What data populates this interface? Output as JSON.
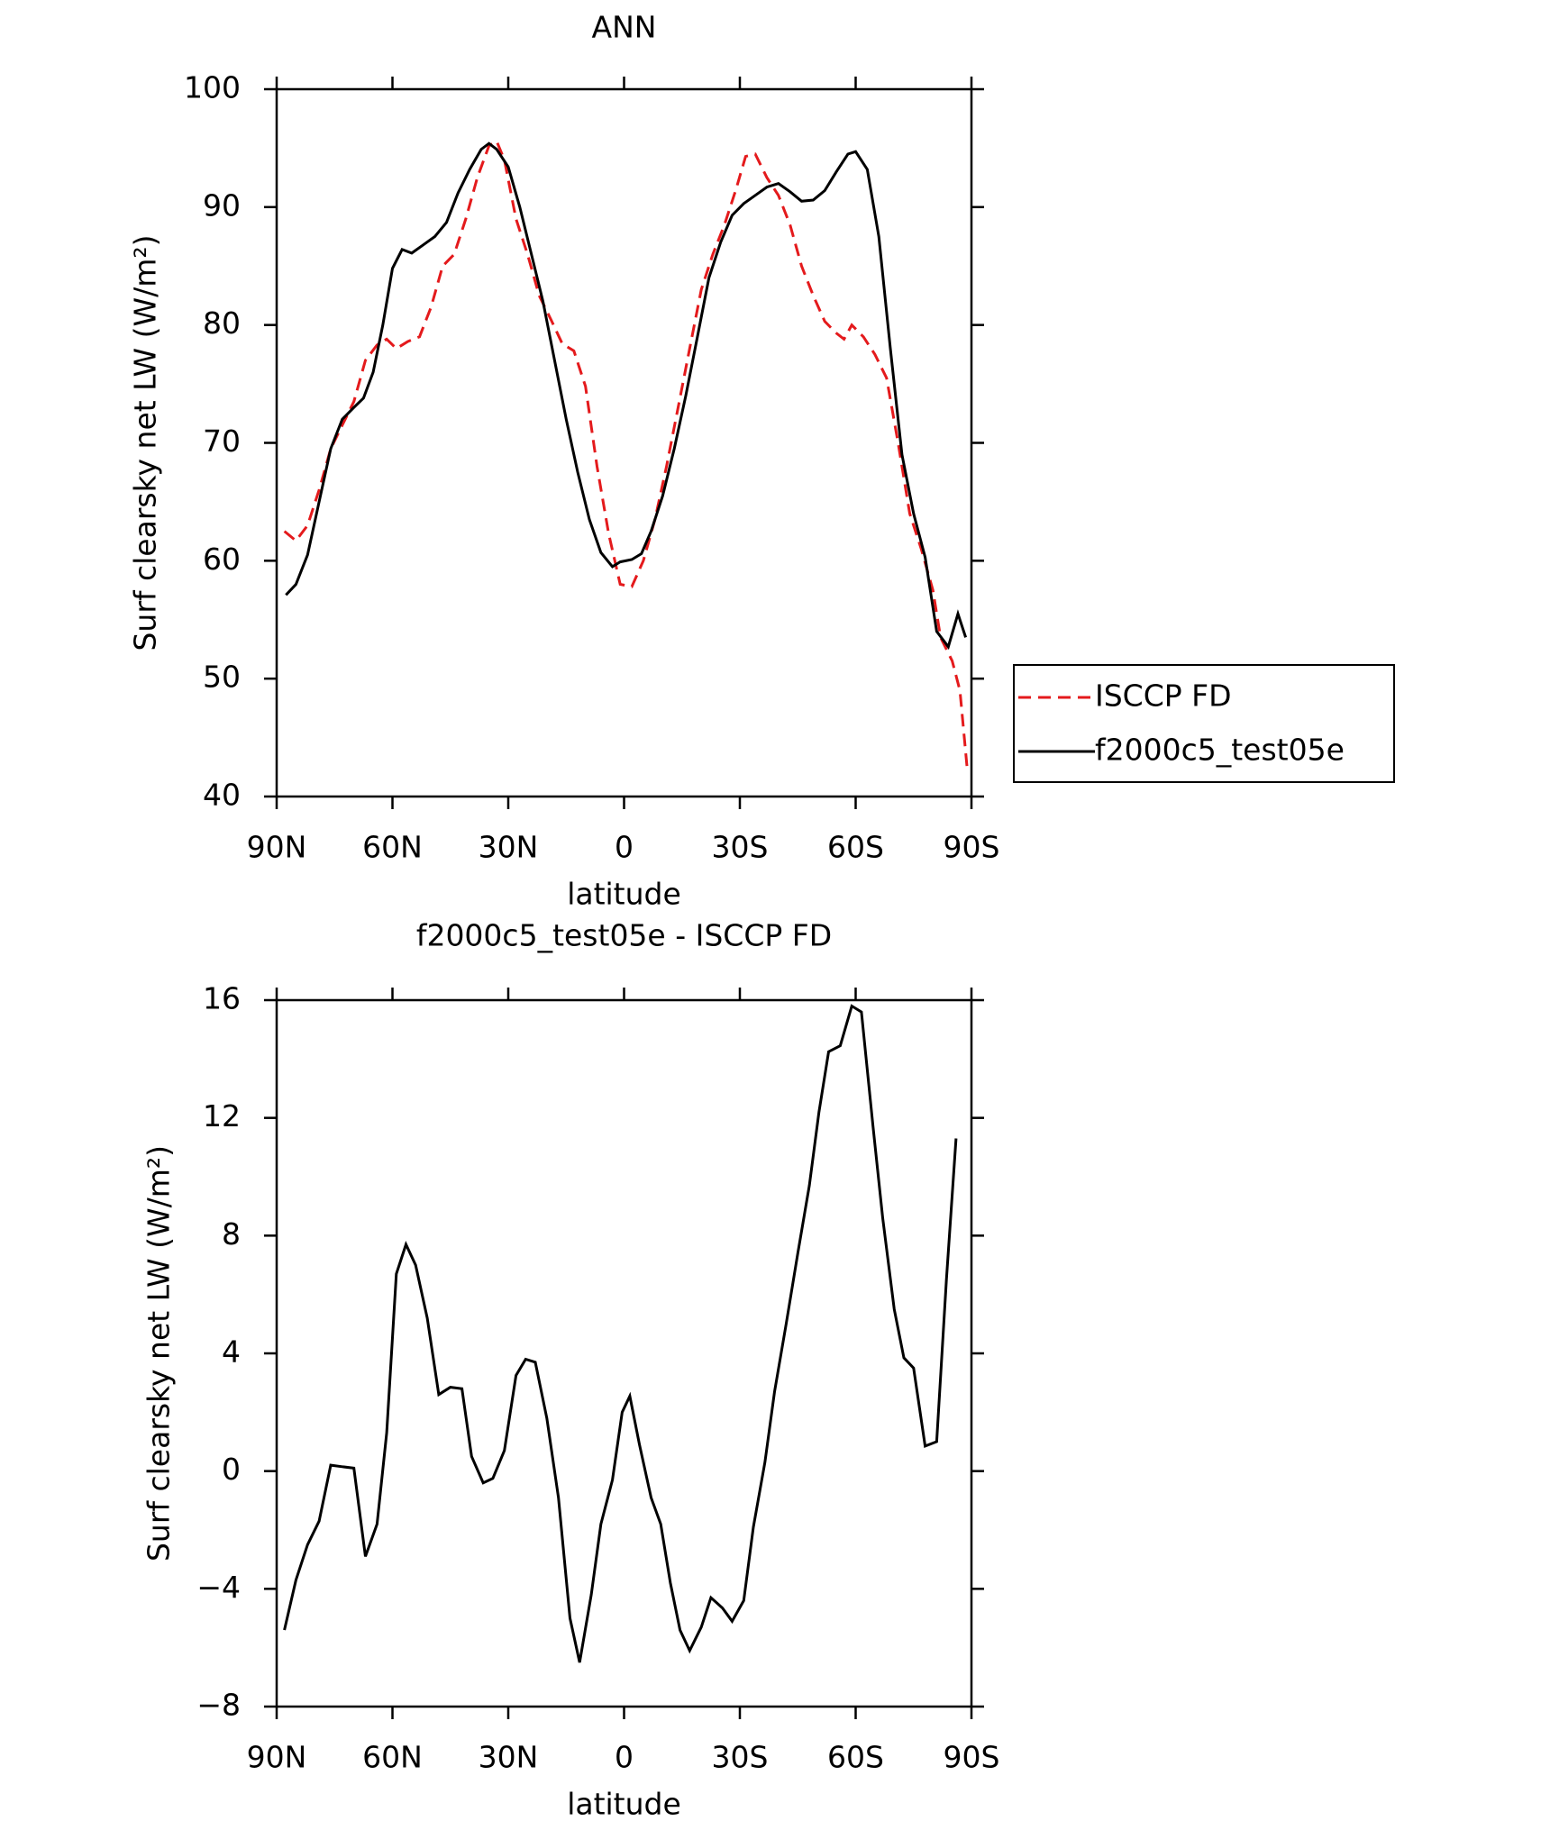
{
  "chart_data": [
    {
      "type": "line",
      "title": "ANN",
      "x_label": "latitude",
      "y_label": "Surf clearsky net LW (W/m²)",
      "xlim": [
        90,
        -90
      ],
      "xticks": [
        {
          "value": 90,
          "label": "90N"
        },
        {
          "value": 60,
          "label": "60N"
        },
        {
          "value": 30,
          "label": "30N"
        },
        0,
        {
          "value": -30,
          "label": "30S"
        },
        {
          "value": -60,
          "label": "60S"
        },
        {
          "value": -90,
          "label": "90S"
        }
      ],
      "ylim": [
        40,
        100
      ],
      "yticks": [
        40,
        50,
        60,
        70,
        80,
        90,
        100
      ],
      "legend": "right",
      "series": [
        {
          "name": "ISCCP FD",
          "color": "#e41a1c",
          "style": "dashed",
          "x": [
            88,
            85,
            82,
            79,
            76,
            73,
            70,
            67,
            64,
            61.5,
            59,
            56,
            53,
            50,
            47,
            44,
            41,
            38,
            35,
            33,
            31,
            28,
            25,
            22,
            19,
            16,
            13,
            10,
            7,
            4,
            1,
            -2,
            -5,
            -8,
            -11,
            -14,
            -17,
            -20,
            -23,
            -26,
            -29,
            -31.5,
            -34,
            -37,
            -40,
            -43,
            -46,
            -49,
            -52,
            -55,
            -57,
            -59,
            -62,
            -65,
            -68,
            -71,
            -74,
            -77,
            -80,
            -82,
            -85,
            -87,
            -89
          ],
          "values": [
            62.5,
            61.7,
            63,
            66,
            69.5,
            71.5,
            73.5,
            77,
            78.3,
            78.8,
            78,
            78.6,
            79,
            81.5,
            85,
            86,
            89,
            92.5,
            95.2,
            95.6,
            94,
            89,
            86,
            82.5,
            80.5,
            78.4,
            77.8,
            74.8,
            68,
            62.3,
            58,
            57.8,
            60,
            63.5,
            68,
            73,
            78,
            83,
            86,
            88.5,
            91.5,
            94.3,
            94.5,
            92.5,
            91,
            88.5,
            85,
            82.5,
            80.3,
            79.3,
            78.8,
            80,
            79,
            77.5,
            75.5,
            70,
            64,
            61,
            57.5,
            53.5,
            51.5,
            49,
            42
          ]
        },
        {
          "name": "f2000c5_test05e",
          "color": "#000000",
          "style": "solid",
          "x": [
            87.6,
            85,
            82,
            79,
            76,
            73,
            70,
            67.5,
            65,
            62.5,
            60,
            57.5,
            55,
            52,
            49,
            46,
            43,
            40,
            37,
            35,
            33,
            30,
            27,
            24,
            21,
            18,
            15,
            12,
            9,
            6,
            3,
            1,
            -2,
            -4.5,
            -7,
            -10,
            -13,
            -16,
            -19,
            -22,
            -25,
            -28,
            -31,
            -34,
            -37,
            -40,
            -43,
            -46,
            -49,
            -52,
            -55,
            -58,
            -60,
            -63,
            -66,
            -69,
            -72,
            -75,
            -78,
            -81,
            -84,
            -86.5,
            -88.5
          ],
          "values": [
            57.1,
            58,
            60.5,
            65,
            69.5,
            72,
            73,
            73.8,
            76,
            80,
            84.8,
            86.4,
            86.1,
            86.8,
            87.5,
            88.7,
            91.2,
            93.2,
            94.9,
            95.4,
            94.9,
            93.4,
            90,
            86,
            82,
            77,
            72,
            67.5,
            63.5,
            60.7,
            59.5,
            59.9,
            60.1,
            60.6,
            62.5,
            65.5,
            69.5,
            74,
            79,
            84,
            87,
            89.3,
            90.3,
            91,
            91.7,
            92,
            91.3,
            90.5,
            90.6,
            91.4,
            93,
            94.5,
            94.7,
            93.2,
            87.5,
            78,
            69,
            64,
            60.3,
            54,
            52.7,
            55.5,
            53.5
          ]
        }
      ]
    },
    {
      "type": "line",
      "title": "f2000c5_test05e - ISCCP FD",
      "x_label": "latitude",
      "y_label": "Surf clearsky net LW (W/m²)",
      "xlim": [
        90,
        -90
      ],
      "xticks": [
        {
          "value": 90,
          "label": "90N"
        },
        {
          "value": 60,
          "label": "60N"
        },
        {
          "value": 30,
          "label": "30N"
        },
        0,
        {
          "value": -30,
          "label": "30S"
        },
        {
          "value": -60,
          "label": "60S"
        },
        {
          "value": -90,
          "label": "90S"
        }
      ],
      "ylim": [
        -8,
        16
      ],
      "yticks": [
        {
          "value": -8,
          "label": "−8"
        },
        {
          "value": -4,
          "label": "−4"
        },
        0,
        4,
        8,
        12,
        16
      ],
      "series": [
        {
          "color": "#000000",
          "style": "solid",
          "x": [
            88,
            85,
            82,
            79,
            76,
            73,
            70,
            67,
            64,
            61.5,
            59,
            56.5,
            54,
            51,
            48,
            45,
            42,
            39.5,
            36.5,
            34,
            31,
            28,
            25.5,
            23,
            20,
            17,
            14,
            11.5,
            8.5,
            6,
            3,
            0.5,
            -1.5,
            -4,
            -7,
            -9.5,
            -12,
            -14.5,
            -17,
            -20,
            -22.5,
            -25.5,
            -28,
            -31,
            -33.5,
            -36.5,
            -39,
            -42,
            -45,
            -48,
            -50.5,
            -53,
            -56,
            -59,
            -61.5,
            -64.5,
            -67,
            -70,
            -72.5,
            -75,
            -78,
            -81,
            -83.5,
            -86
          ],
          "values": [
            -5.4,
            -3.7,
            -2.5,
            -1.7,
            0.2,
            0.15,
            0.1,
            -2.9,
            -1.8,
            1.3,
            6.7,
            7.7,
            7.0,
            5.2,
            2.6,
            2.85,
            2.8,
            0.5,
            -0.4,
            -0.25,
            0.7,
            3.25,
            3.8,
            3.7,
            1.8,
            -0.9,
            -5.0,
            -6.5,
            -4.2,
            -1.8,
            -0.3,
            2.0,
            2.55,
            0.9,
            -0.9,
            -1.8,
            -3.8,
            -5.4,
            -6.1,
            -5.3,
            -4.3,
            -4.65,
            -5.1,
            -4.4,
            -1.9,
            0.3,
            2.7,
            5.0,
            7.4,
            9.7,
            12.2,
            14.25,
            14.45,
            15.8,
            15.6,
            11.7,
            8.6,
            5.5,
            3.85,
            3.5,
            0.85,
            1.0,
            6.5,
            11.3
          ]
        }
      ]
    }
  ]
}
